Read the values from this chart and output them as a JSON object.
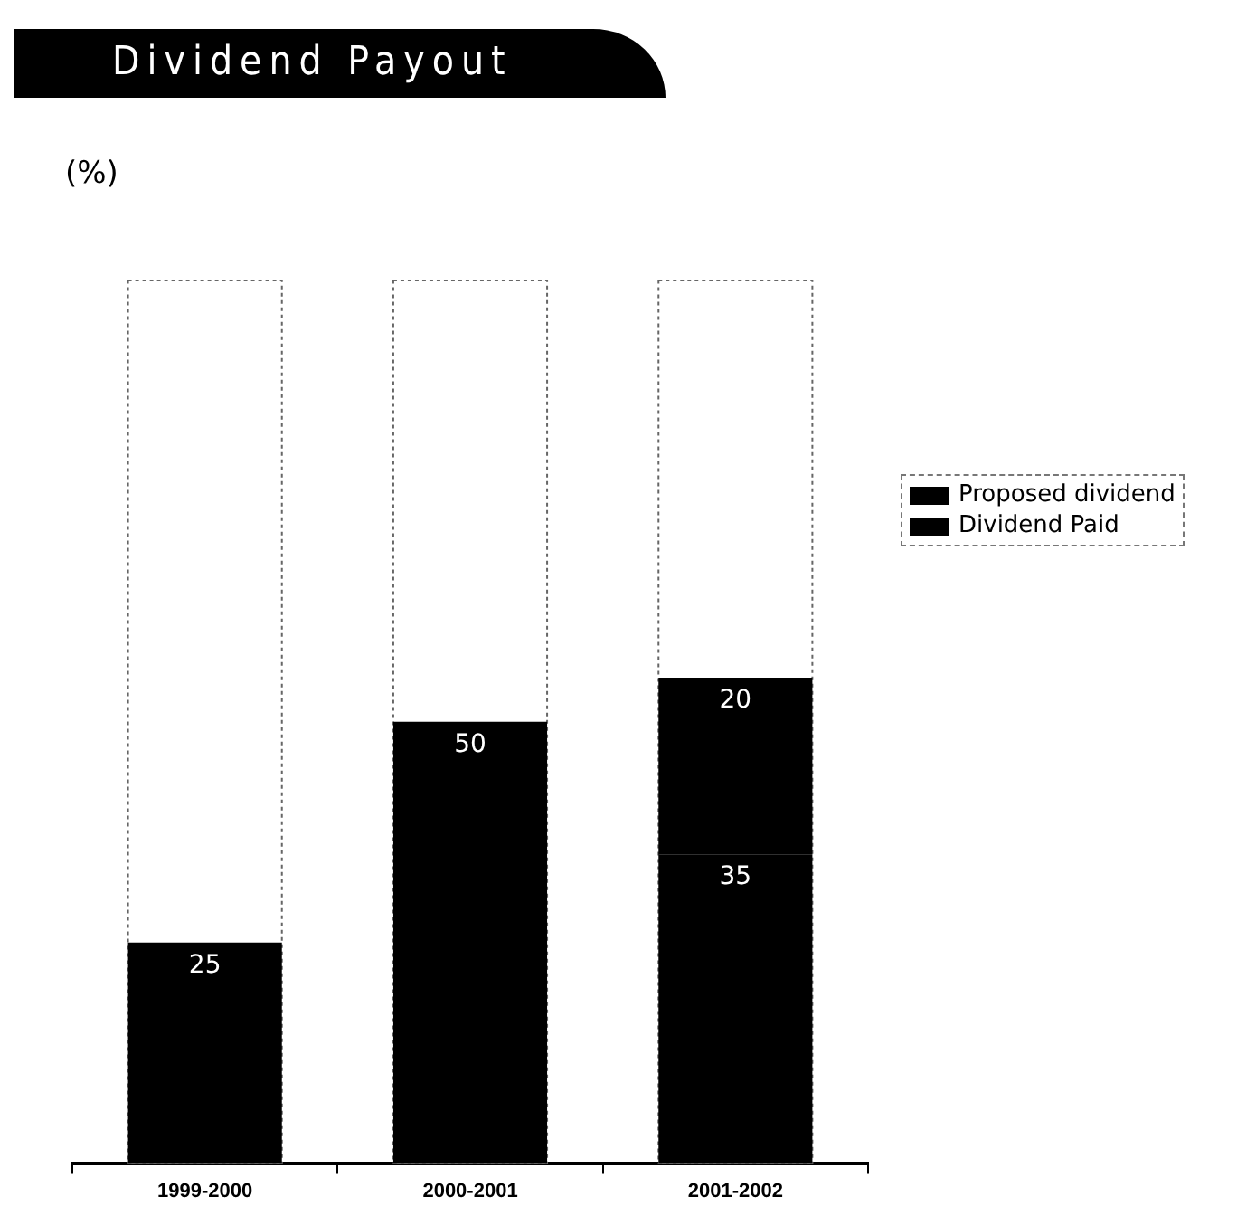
{
  "chart_data": {
    "type": "bar",
    "title": "Dividend Payout",
    "ylabel": "(%)",
    "categories": [
      "1999-2000",
      "2000-2001",
      "2001-2002"
    ],
    "stacked": true,
    "ylim": [
      0,
      100
    ],
    "tick_labels": "x",
    "legend": "right",
    "data_labels": true,
    "grid": false,
    "series": [
      {
        "name": "Dividend Paid",
        "color": "#000000",
        "values": [
          25,
          50,
          35
        ]
      },
      {
        "name": "Proposed dividend",
        "color": "#000000",
        "values": [
          null,
          null,
          20
        ]
      }
    ]
  }
}
